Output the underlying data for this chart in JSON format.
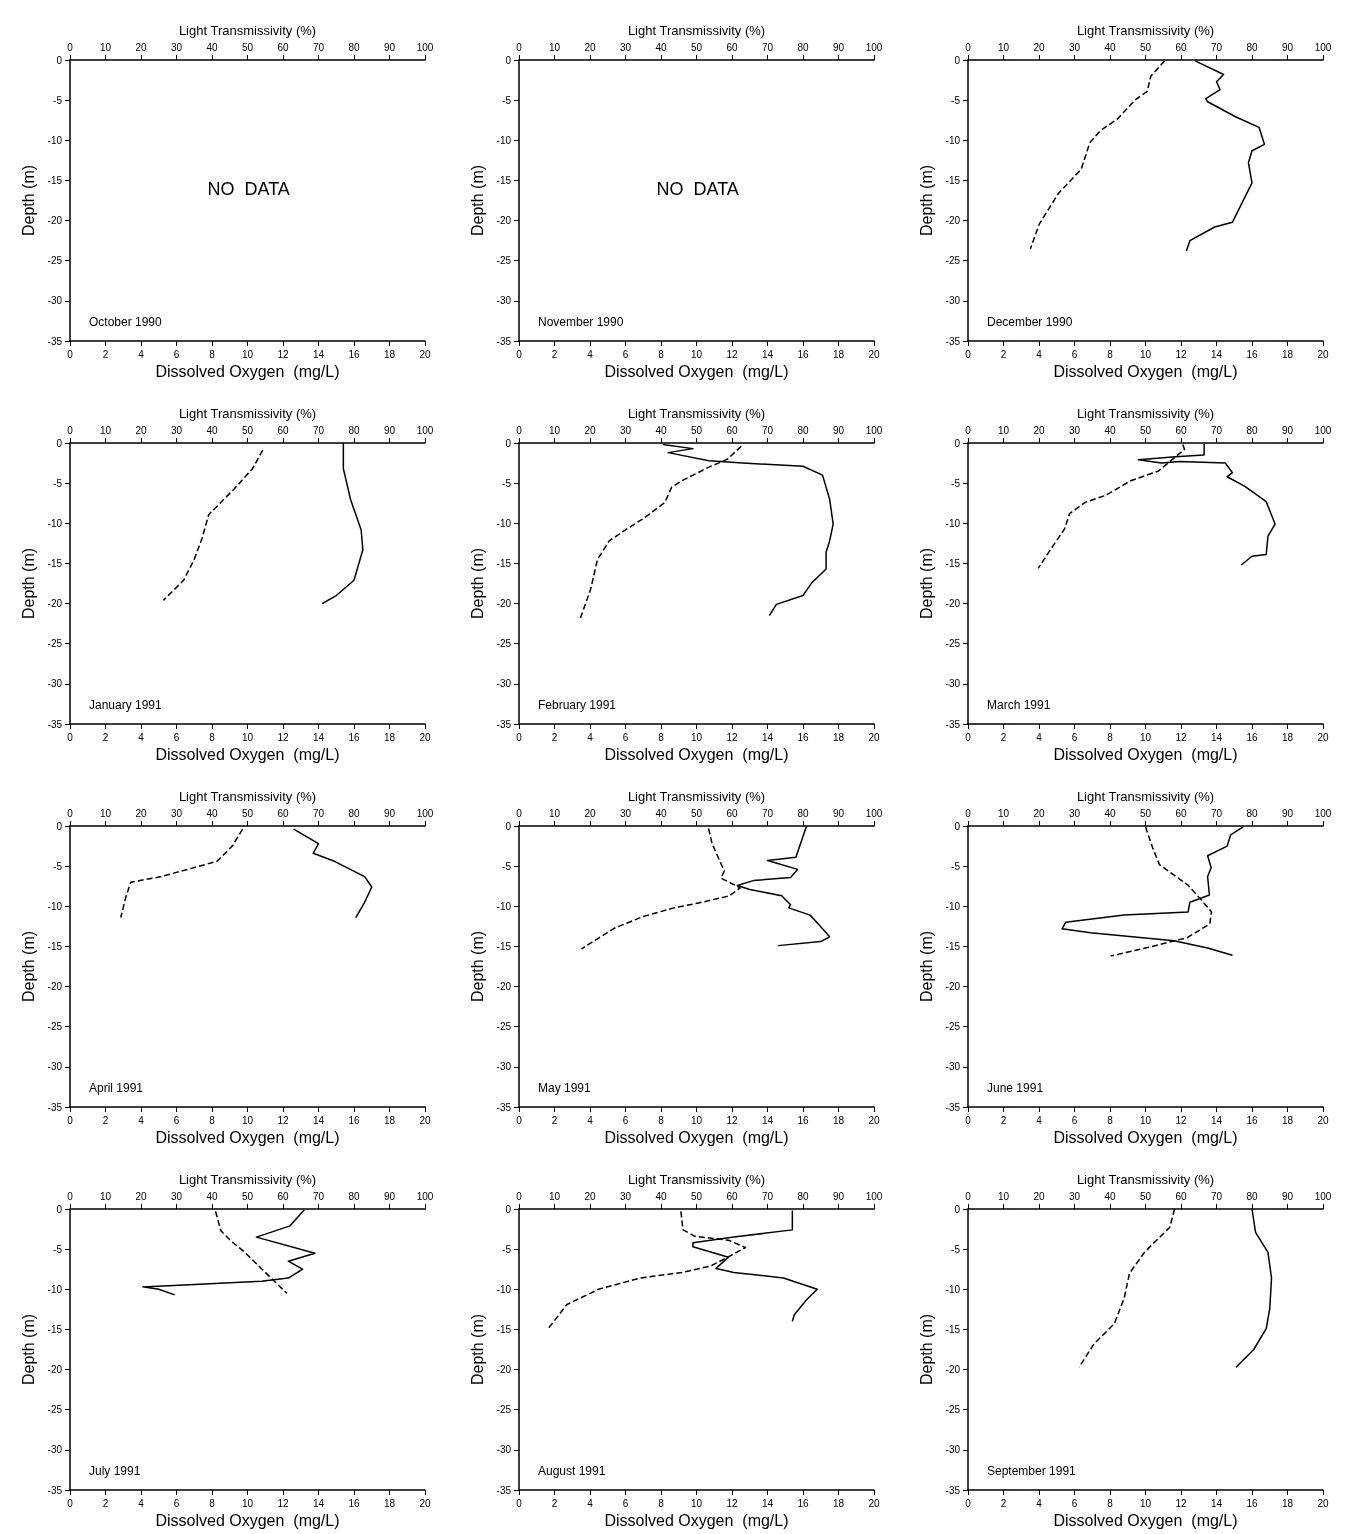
{
  "chart_data": [
    {
      "type": "line",
      "title": "October 1990",
      "xlabel": "Dissolved Oxygen  (mg/L)",
      "x2label": "Light Transmissivity (%)",
      "ylabel": "Depth (m)",
      "annotations": [
        "NO  DATA"
      ],
      "xlim": [
        0,
        20
      ],
      "xticks": [
        0,
        2,
        4,
        6,
        8,
        10,
        12,
        14,
        16,
        18,
        20
      ],
      "x2lim": [
        0,
        100
      ],
      "x2ticks": [
        0,
        10,
        20,
        30,
        40,
        50,
        60,
        70,
        80,
        90,
        100
      ],
      "ylim": [
        -35,
        0
      ],
      "yticks": [
        0,
        -5,
        -10,
        -15,
        -20,
        -25,
        -30,
        -35
      ]
    },
    {
      "type": "line",
      "title": "November 1990",
      "xlabel": "Dissolved Oxygen  (mg/L)",
      "x2label": "Light Transmissivity (%)",
      "ylabel": "Depth (m)",
      "annotations": [
        "NO  DATA"
      ],
      "xlim": [
        0,
        20
      ],
      "xticks": [
        0,
        2,
        4,
        6,
        8,
        10,
        12,
        14,
        16,
        18,
        20
      ],
      "x2lim": [
        0,
        100
      ],
      "x2ticks": [
        0,
        10,
        20,
        30,
        40,
        50,
        60,
        70,
        80,
        90,
        100
      ],
      "ylim": [
        -35,
        0
      ],
      "yticks": [
        0,
        -5,
        -10,
        -15,
        -20,
        -25,
        -30,
        -35
      ]
    },
    {
      "type": "line",
      "title": "December 1990",
      "xlabel": "Dissolved Oxygen  (mg/L)",
      "x2label": "Light Transmissivity (%)",
      "ylabel": "Depth (m)",
      "xlim": [
        0,
        20
      ],
      "xticks": [
        0,
        2,
        4,
        6,
        8,
        10,
        12,
        14,
        16,
        18,
        20
      ],
      "x2lim": [
        0,
        100
      ],
      "x2ticks": [
        0,
        10,
        20,
        30,
        40,
        50,
        60,
        70,
        80,
        90,
        100
      ],
      "ylim": [
        -35,
        0
      ],
      "yticks": [
        0,
        -5,
        -10,
        -15,
        -20,
        -25,
        -30,
        -35
      ],
      "series": [
        {
          "color": "#000000",
          "line_style": "solid",
          "x": [
            12.8,
            14.4,
            14.0,
            14.2,
            13.4,
            13.5,
            15.1,
            16.4,
            16.7,
            16.0,
            15.8,
            16.0,
            14.9,
            13.9,
            12.5,
            12.3
          ],
          "values": [
            -0.1,
            -1.8,
            -2.7,
            -3.7,
            -4.8,
            -5.2,
            -7.1,
            -8.4,
            -10.5,
            -11.3,
            -12.8,
            -15.3,
            -20.2,
            -20.8,
            -22.5,
            -23.8
          ]
        },
        {
          "color": "#000000",
          "line_style": "dashed",
          "axis": "x2",
          "x": [
            55.4,
            51.5,
            50.5,
            47,
            42.2,
            37.3,
            34.3,
            31.9,
            25.5,
            20.1,
            17.6
          ],
          "values": [
            -0.1,
            -2.0,
            -3.9,
            -5.0,
            -7.3,
            -8.8,
            -10.3,
            -13.6,
            -16.6,
            -20.4,
            -23.5
          ]
        }
      ]
    },
    {
      "type": "line",
      "title": "January 1991",
      "xlabel": "Dissolved Oxygen  (mg/L)",
      "x2label": "Light Transmissivity (%)",
      "ylabel": "Depth (m)",
      "xlim": [
        0,
        20
      ],
      "xticks": [
        0,
        2,
        4,
        6,
        8,
        10,
        12,
        14,
        16,
        18,
        20
      ],
      "x2lim": [
        0,
        100
      ],
      "x2ticks": [
        0,
        10,
        20,
        30,
        40,
        50,
        60,
        70,
        80,
        90,
        100
      ],
      "ylim": [
        -35,
        0
      ],
      "yticks": [
        0,
        -5,
        -10,
        -15,
        -20,
        -25,
        -30,
        -35
      ],
      "series": [
        {
          "color": "#000000",
          "line_style": "solid",
          "x": [
            15.4,
            15.4,
            15.8,
            16.4,
            16.5,
            16.0,
            15.0,
            14.2
          ],
          "values": [
            0,
            -3.2,
            -7.0,
            -10.8,
            -13.3,
            -17.1,
            -19.0,
            -20.0
          ]
        },
        {
          "color": "#000000",
          "line_style": "dashed",
          "axis": "x2",
          "x": [
            54.3,
            51.4,
            46.3,
            39.1,
            37.1,
            34.9,
            32.0,
            26.3
          ],
          "values": [
            -0.9,
            -3.2,
            -5.7,
            -8.9,
            -12.0,
            -14.6,
            -17.1,
            -19.6
          ]
        }
      ]
    },
    {
      "type": "line",
      "title": "February 1991",
      "xlabel": "Dissolved Oxygen  (mg/L)",
      "x2label": "Light Transmissivity (%)",
      "ylabel": "Depth (m)",
      "xlim": [
        0,
        20
      ],
      "xticks": [
        0,
        2,
        4,
        6,
        8,
        10,
        12,
        14,
        16,
        18,
        20
      ],
      "x2lim": [
        0,
        100
      ],
      "x2ticks": [
        0,
        10,
        20,
        30,
        40,
        50,
        60,
        70,
        80,
        90,
        100
      ],
      "ylim": [
        -35,
        0
      ],
      "yticks": [
        0,
        -5,
        -10,
        -15,
        -20,
        -25,
        -30,
        -35
      ],
      "series": [
        {
          "color": "#000000",
          "line_style": "solid",
          "x": [
            8.1,
            9.8,
            8.4,
            10.7,
            12.6,
            16.0,
            17.1,
            17.5,
            17.7,
            17.5,
            17.3,
            17.3,
            16.5,
            16.0,
            14.5,
            14.1
          ],
          "values": [
            -0.2,
            -0.7,
            -1.2,
            -2.2,
            -2.5,
            -2.9,
            -4.0,
            -7.0,
            -10.1,
            -12.2,
            -13.6,
            -15.7,
            -17.4,
            -19.0,
            -20.1,
            -21.5
          ]
        },
        {
          "color": "#000000",
          "line_style": "dashed",
          "axis": "x2",
          "x": [
            62.6,
            58.8,
            53.5,
            45.9,
            43.0,
            41.1,
            35.4,
            29.7,
            25.4,
            22.1,
            20.2,
            17.3
          ],
          "values": [
            -0.4,
            -2.0,
            -3.0,
            -4.7,
            -5.5,
            -7.4,
            -9.3,
            -10.9,
            -12.2,
            -14.5,
            -18.2,
            -21.8
          ]
        }
      ]
    },
    {
      "type": "line",
      "title": "March 1991",
      "xlabel": "Dissolved Oxygen  (mg/L)",
      "x2label": "Light Transmissivity (%)",
      "ylabel": "Depth (m)",
      "xlim": [
        0,
        20
      ],
      "xticks": [
        0,
        2,
        4,
        6,
        8,
        10,
        12,
        14,
        16,
        18,
        20
      ],
      "x2lim": [
        0,
        100
      ],
      "x2ticks": [
        0,
        10,
        20,
        30,
        40,
        50,
        60,
        70,
        80,
        90,
        100
      ],
      "ylim": [
        -35,
        0
      ],
      "yticks": [
        0,
        -5,
        -10,
        -15,
        -20,
        -25,
        -30,
        -35
      ],
      "series": [
        {
          "color": "#000000",
          "line_style": "solid",
          "x": [
            13.3,
            13.3,
            11.7,
            9.6,
            10.9,
            11.9,
            14.5,
            14.9,
            14.6,
            15.6,
            16.8,
            17.3,
            16.9,
            16.8,
            16.0,
            15.4
          ],
          "values": [
            -0.1,
            -1.5,
            -1.7,
            -2.1,
            -2.5,
            -2.3,
            -2.5,
            -3.7,
            -4.2,
            -5.4,
            -7.3,
            -10.1,
            -11.6,
            -13.9,
            -14.1,
            -15.2
          ]
        },
        {
          "color": "#000000",
          "line_style": "dashed",
          "axis": "x2",
          "x": [
            60.5,
            61,
            53.6,
            45.8,
            38.9,
            33,
            28.6,
            27.2,
            23.2,
            19.8
          ],
          "values": [
            -0.2,
            -0.8,
            -3.5,
            -4.7,
            -6.5,
            -7.4,
            -8.8,
            -10.7,
            -13.3,
            -15.6
          ]
        }
      ]
    },
    {
      "type": "line",
      "title": "April 1991",
      "xlabel": "Dissolved Oxygen  (mg/L)",
      "x2label": "Light Transmissivity (%)",
      "ylabel": "Depth (m)",
      "xlim": [
        0,
        20
      ],
      "xticks": [
        0,
        2,
        4,
        6,
        8,
        10,
        12,
        14,
        16,
        18,
        20
      ],
      "x2lim": [
        0,
        100
      ],
      "x2ticks": [
        0,
        10,
        20,
        30,
        40,
        50,
        60,
        70,
        80,
        90,
        100
      ],
      "ylim": [
        -35,
        0
      ],
      "yticks": [
        0,
        -5,
        -10,
        -15,
        -20,
        -25,
        -30,
        -35
      ],
      "series": [
        {
          "color": "#000000",
          "line_style": "solid",
          "x": [
            12.6,
            14.0,
            13.7,
            14.9,
            16.6,
            17.0,
            16.6,
            16.1
          ],
          "values": [
            -0.4,
            -2.2,
            -3.4,
            -4.4,
            -6.3,
            -7.6,
            -9.5,
            -11.4
          ]
        },
        {
          "color": "#000000",
          "line_style": "dashed",
          "axis": "x2",
          "x": [
            48.6,
            45.7,
            41.4,
            25.7,
            17.1,
            15.7,
            14.3
          ],
          "values": [
            -0.4,
            -2.5,
            -4.4,
            -6.3,
            -7.0,
            -8.9,
            -11.4
          ]
        }
      ]
    },
    {
      "type": "line",
      "title": "May 1991",
      "xlabel": "Dissolved Oxygen  (mg/L)",
      "x2label": "Light Transmissivity (%)",
      "ylabel": "Depth (m)",
      "xlim": [
        0,
        20
      ],
      "xticks": [
        0,
        2,
        4,
        6,
        8,
        10,
        12,
        14,
        16,
        18,
        20
      ],
      "x2lim": [
        0,
        100
      ],
      "x2ticks": [
        0,
        10,
        20,
        30,
        40,
        50,
        60,
        70,
        80,
        90,
        100
      ],
      "ylim": [
        -35,
        0
      ],
      "yticks": [
        0,
        -5,
        -10,
        -15,
        -20,
        -25,
        -30,
        -35
      ],
      "series": [
        {
          "color": "#000000",
          "line_style": "solid",
          "x": [
            16.2,
            15.6,
            14.0,
            15.7,
            15.3,
            13.2,
            12.3,
            13.0,
            14.8,
            15.3,
            15.2,
            16.4,
            16.9,
            17.5,
            17.0,
            14.6
          ],
          "values": [
            0,
            -3.9,
            -4.3,
            -5.4,
            -6.4,
            -6.8,
            -7.4,
            -7.9,
            -8.7,
            -9.8,
            -10.2,
            -11.1,
            -12.3,
            -13.8,
            -14.4,
            -14.9
          ]
        },
        {
          "color": "#000000",
          "line_style": "dashed",
          "axis": "x2",
          "x": [
            53.4,
            54.4,
            57.8,
            56.9,
            62.3,
            59.3,
            50.5,
            43.6,
            34.8,
            27,
            17.6
          ],
          "values": [
            -0.3,
            -2.2,
            -5.6,
            -6.5,
            -7.7,
            -8.7,
            -9.6,
            -10.2,
            -11.3,
            -12.7,
            -15.3
          ]
        }
      ]
    },
    {
      "type": "line",
      "title": "June 1991",
      "xlabel": "Dissolved Oxygen  (mg/L)",
      "x2label": "Light Transmissivity (%)",
      "ylabel": "Depth (m)",
      "xlim": [
        0,
        20
      ],
      "xticks": [
        0,
        2,
        4,
        6,
        8,
        10,
        12,
        14,
        16,
        18,
        20
      ],
      "x2lim": [
        0,
        100
      ],
      "x2ticks": [
        0,
        10,
        20,
        30,
        40,
        50,
        60,
        70,
        80,
        90,
        100
      ],
      "ylim": [
        -35,
        0
      ],
      "yticks": [
        0,
        -5,
        -10,
        -15,
        -20,
        -25,
        -30,
        -35
      ],
      "series": [
        {
          "color": "#000000",
          "line_style": "solid",
          "x": [
            15.5,
            14.8,
            14.6,
            13.5,
            13.7,
            13.5,
            13.6,
            12.5,
            12.4,
            8.8,
            5.5,
            5.3,
            6.9,
            11.6,
            13.5,
            14.9
          ],
          "values": [
            -0.1,
            -1.1,
            -2.5,
            -3.7,
            -5.2,
            -6.3,
            -8.6,
            -9.5,
            -10.7,
            -11.1,
            -12.0,
            -12.8,
            -13.3,
            -14.3,
            -15.2,
            -16.1
          ]
        },
        {
          "color": "#000000",
          "line_style": "dashed",
          "axis": "x2",
          "x": [
            50,
            52,
            53.9,
            61.8,
            65.7,
            68.6,
            68.1,
            61.8,
            50,
            40.2
          ],
          "values": [
            -0.1,
            -2.7,
            -4.8,
            -7.3,
            -9.2,
            -10.7,
            -12.2,
            -13.9,
            -15.2,
            -16.2
          ]
        }
      ]
    },
    {
      "type": "line",
      "title": "July 1991",
      "xlabel": "Dissolved Oxygen  (mg/L)",
      "x2label": "Light Transmissivity (%)",
      "ylabel": "Depth (m)",
      "xlim": [
        0,
        20
      ],
      "xticks": [
        0,
        2,
        4,
        6,
        8,
        10,
        12,
        14,
        16,
        18,
        20
      ],
      "x2lim": [
        0,
        100
      ],
      "x2ticks": [
        0,
        10,
        20,
        30,
        40,
        50,
        60,
        70,
        80,
        90,
        100
      ],
      "ylim": [
        -35,
        0
      ],
      "yticks": [
        0,
        -5,
        -10,
        -15,
        -20,
        -25,
        -30,
        -35
      ],
      "series": [
        {
          "color": "#000000",
          "line_style": "solid",
          "x": [
            13.2,
            12.4,
            10.5,
            13.8,
            12.3,
            13.1,
            12.3,
            10.8,
            4.1,
            5.0,
            5.9
          ],
          "values": [
            -0.1,
            -2.1,
            -3.5,
            -5.5,
            -6.5,
            -7.5,
            -8.6,
            -9.0,
            -9.7,
            -10.0,
            -10.7
          ]
        },
        {
          "color": "#000000",
          "line_style": "dashed",
          "axis": "x2",
          "x": [
            41,
            42.5,
            45.4,
            49,
            54.1,
            57.8,
            61.1
          ],
          "values": [
            -0.3,
            -2.7,
            -4.0,
            -5.3,
            -7.5,
            -9.1,
            -10.5
          ]
        }
      ]
    },
    {
      "type": "line",
      "title": "August 1991",
      "xlabel": "Dissolved Oxygen  (mg/L)",
      "x2label": "Light Transmissivity (%)",
      "ylabel": "Depth (m)",
      "xlim": [
        0,
        20
      ],
      "xticks": [
        0,
        2,
        4,
        6,
        8,
        10,
        12,
        14,
        16,
        18,
        20
      ],
      "x2lim": [
        0,
        100
      ],
      "x2ticks": [
        0,
        10,
        20,
        30,
        40,
        50,
        60,
        70,
        80,
        90,
        100
      ],
      "ylim": [
        -35,
        0
      ],
      "yticks": [
        0,
        -5,
        -10,
        -15,
        -20,
        -25,
        -30,
        -35
      ],
      "series": [
        {
          "color": "#000000",
          "line_style": "solid",
          "x": [
            15.4,
            15.4,
            12.1,
            9.8,
            9.8,
            11.8,
            11.1,
            12.1,
            14.9,
            16.8,
            16.2,
            15.5,
            15.4
          ],
          "values": [
            -0.2,
            -2.6,
            -3.5,
            -4.2,
            -4.7,
            -6.0,
            -7.4,
            -7.9,
            -8.6,
            -10.0,
            -11.3,
            -13.2,
            -14.0
          ]
        },
        {
          "color": "#000000",
          "line_style": "dashed",
          "axis": "x2",
          "x": [
            45.6,
            46.2,
            49.6,
            59.1,
            63.8,
            58.4,
            54,
            45.9,
            34.1,
            22.4,
            13.5,
            8.4
          ],
          "values": [
            -0.3,
            -2.6,
            -3.4,
            -3.9,
            -4.8,
            -6.1,
            -7.1,
            -7.9,
            -8.6,
            -10.0,
            -11.9,
            -14.8
          ]
        }
      ]
    },
    {
      "type": "line",
      "title": "September 1991",
      "xlabel": "Dissolved Oxygen  (mg/L)",
      "x2label": "Light Transmissivity (%)",
      "ylabel": "Depth (m)",
      "xlim": [
        0,
        20
      ],
      "xticks": [
        0,
        2,
        4,
        6,
        8,
        10,
        12,
        14,
        16,
        18,
        20
      ],
      "x2lim": [
        0,
        100
      ],
      "x2ticks": [
        0,
        10,
        20,
        30,
        40,
        50,
        60,
        70,
        80,
        90,
        100
      ],
      "ylim": [
        -35,
        0
      ],
      "yticks": [
        0,
        -5,
        -10,
        -15,
        -20,
        -25,
        -30,
        -35
      ],
      "series": [
        {
          "color": "#000000",
          "line_style": "solid",
          "x": [
            16.0,
            16.2,
            16.9,
            17.1,
            17.0,
            16.8,
            16.1,
            15.1
          ],
          "values": [
            0,
            -2.9,
            -5.4,
            -8.6,
            -12.4,
            -14.9,
            -17.5,
            -19.7
          ]
        },
        {
          "color": "#000000",
          "line_style": "dashed",
          "axis": "x2",
          "x": [
            58.2,
            56.8,
            49.7,
            45.5,
            44,
            41.2,
            35.5,
            31.3
          ],
          "values": [
            0,
            -2.3,
            -5.4,
            -8.0,
            -11.1,
            -14.3,
            -16.8,
            -19.7
          ]
        }
      ]
    }
  ]
}
